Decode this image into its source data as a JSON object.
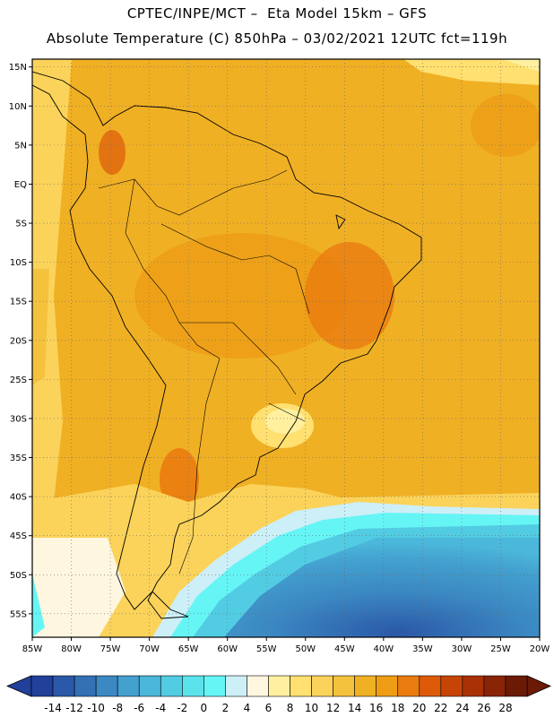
{
  "header": {
    "line1": "CPTEC/INPE/MCT –  Eta Model 15km – GFS",
    "line2": "Absolute Temperature (C) 850hPa – 03/02/2021 12UTC fct=119h"
  },
  "map": {
    "lat_labels": [
      "15N",
      "10N",
      "5N",
      "EQ",
      "5S",
      "10S",
      "15S",
      "20S",
      "25S",
      "30S",
      "35S",
      "40S",
      "45S",
      "50S",
      "55S"
    ],
    "lon_labels": [
      "85W",
      "80W",
      "75W",
      "70W",
      "65W",
      "60W",
      "55W",
      "50W",
      "45W",
      "40W",
      "35W",
      "30W",
      "25W",
      "20W"
    ],
    "lon_range": [
      -85,
      -20
    ],
    "lat_range": [
      -58,
      16
    ],
    "grid": "dotted"
  },
  "colorbar": {
    "labels": [
      "-14",
      "-12",
      "-10",
      "-8",
      "-6",
      "-4",
      "-2",
      "0",
      "2",
      "4",
      "6",
      "8",
      "10",
      "12",
      "14",
      "16",
      "18",
      "20",
      "22",
      "24",
      "26",
      "28"
    ],
    "colors": [
      "#21409a",
      "#2b58a8",
      "#3370b4",
      "#3b88c2",
      "#43a0cf",
      "#4bb7da",
      "#52cce3",
      "#5be3ec",
      "#66f5f5",
      "#cdeff8",
      "#fff6e0",
      "#fff0a0",
      "#ffe070",
      "#fbd35a",
      "#f4c23d",
      "#f0b024",
      "#ee9d15",
      "#ea7c10",
      "#dd5a09",
      "#c74407",
      "#a83206",
      "#8a2406",
      "#6b1a06"
    ]
  }
}
